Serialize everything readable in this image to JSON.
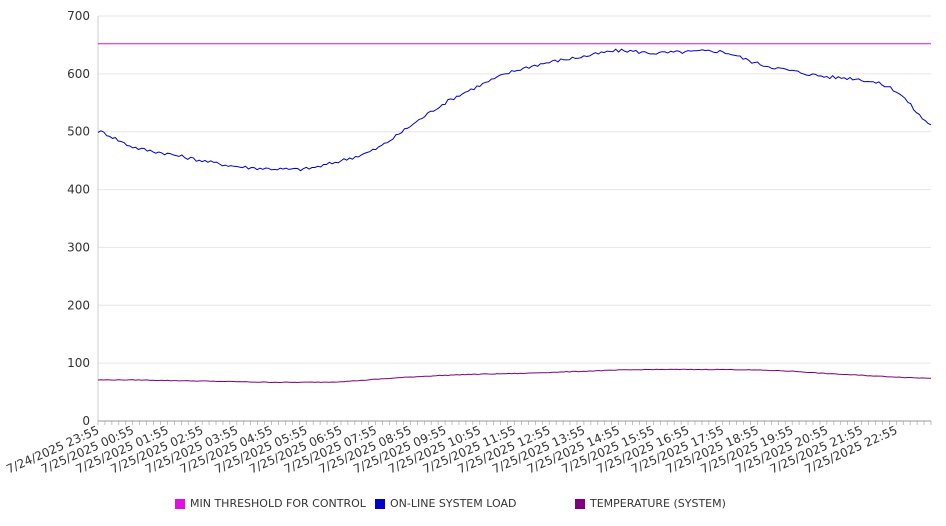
{
  "chart_data": {
    "type": "line",
    "title": "",
    "xlabel": "",
    "ylabel": "",
    "ylim": [
      0,
      700
    ],
    "y_ticks": [
      0,
      100,
      200,
      300,
      400,
      500,
      600,
      700
    ],
    "grid": true,
    "legend_position": "bottom",
    "x_tick_labels": [
      "7/24/2025 23:55",
      "7/25/2025 00:55",
      "7/25/2025 01:55",
      "7/25/2025 02:55",
      "7/25/2025 03:55",
      "7/25/2025 04:55",
      "7/25/2025 05:55",
      "7/25/2025 06:55",
      "7/25/2025 07:55",
      "7/25/2025 08:55",
      "7/25/2025 09:55",
      "7/25/2025 10:55",
      "7/25/2025 11:55",
      "7/25/2025 12:55",
      "7/25/2025 13:55",
      "7/25/2025 14:55",
      "7/25/2025 15:55",
      "7/25/2025 16:55",
      "7/25/2025 17:55",
      "7/25/2025 18:55",
      "7/25/2025 19:55",
      "7/25/2025 20:55",
      "7/25/2025 21:55",
      "7/25/2025 22:55"
    ],
    "series": [
      {
        "name": "MIN THRESHOLD FOR CONTROL",
        "color": "#e010e0",
        "values": [
          652,
          652,
          652,
          652,
          652,
          652,
          652,
          652,
          652,
          652,
          652,
          652,
          652,
          652,
          652,
          652,
          652,
          652,
          652,
          652,
          652,
          652,
          652,
          652,
          652
        ]
      },
      {
        "name": "ON-LINE SYSTEM LOAD",
        "color": "#0000cc",
        "values": [
          501,
          474,
          462,
          450,
          440,
          436,
          436,
          450,
          470,
          510,
          550,
          580,
          605,
          620,
          630,
          640,
          636,
          638,
          638,
          618,
          605,
          595,
          590,
          570,
          512
        ]
      },
      {
        "name": "TEMPERATURE (SYSTEM)",
        "color": "#800080",
        "values": [
          71,
          71,
          70,
          69,
          68,
          67,
          67,
          68,
          72,
          76,
          79,
          81,
          82,
          84,
          86,
          88,
          89,
          89,
          89,
          88,
          86,
          82,
          79,
          76,
          74
        ]
      }
    ]
  }
}
